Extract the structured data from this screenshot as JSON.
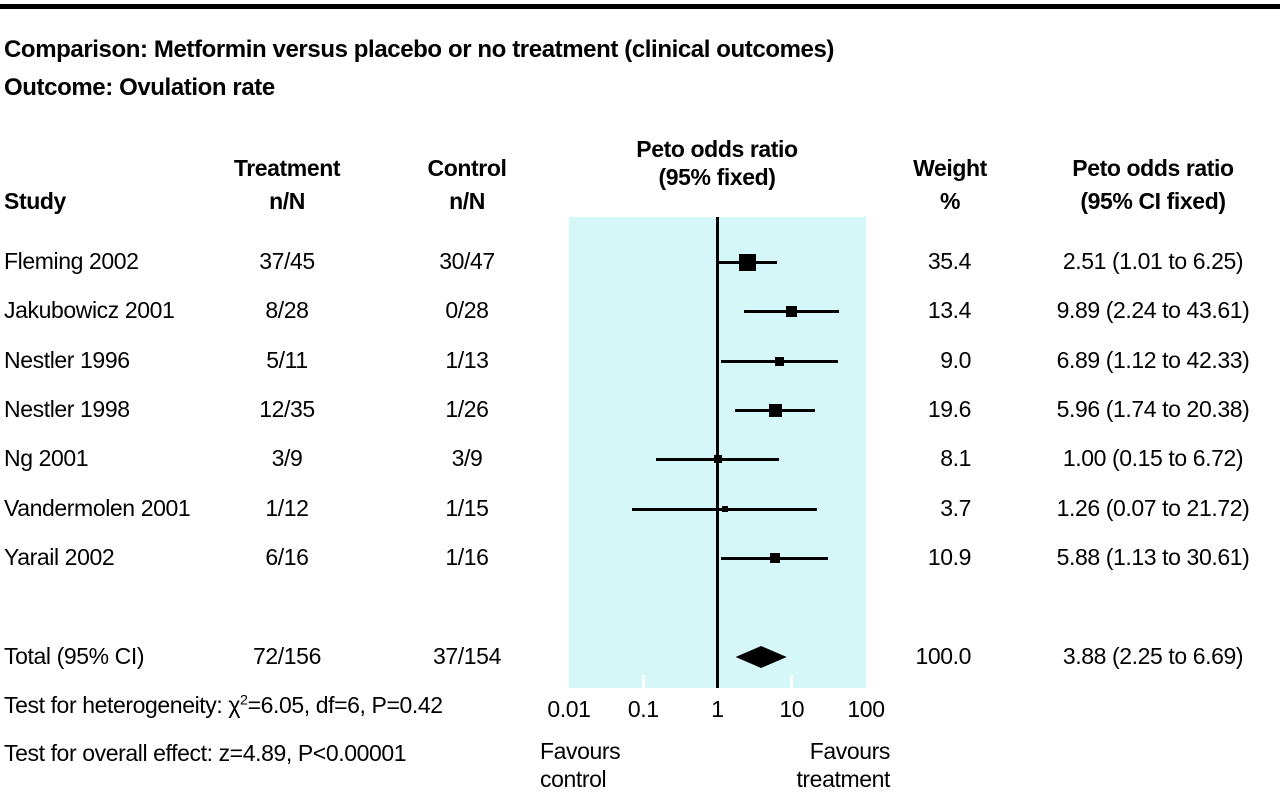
{
  "title": {
    "comparison": "Comparison: Metformin versus placebo or no treatment (clinical outcomes)",
    "outcome": "Outcome: Ovulation rate"
  },
  "columns": {
    "study": "Study",
    "treatment_l1": "Treatment",
    "treatment_l2": "n/N",
    "control_l1": "Control",
    "control_l2": "n/N",
    "plot_l1": "Peto odds ratio",
    "plot_l2": "(95% fixed)",
    "weight_l1": "Weight",
    "weight_l2": "%",
    "or_l1": "Peto odds ratio",
    "or_l2": "(95% CI fixed)"
  },
  "chart_data": {
    "type": "forest",
    "x_axis": {
      "scale": "log10",
      "range": [
        0.01,
        100
      ],
      "ticks": [
        0.01,
        0.1,
        1,
        10,
        100
      ],
      "tick_labels": [
        "0.01",
        "0.1",
        "1",
        "10",
        "100"
      ],
      "null_line": 1
    },
    "studies": [
      {
        "study": "Fleming 2002",
        "treatment": "37/45",
        "control": "30/47",
        "weight": 35.4,
        "weight_label": "35.4",
        "or": 2.51,
        "ci_low": 1.01,
        "ci_high": 6.25,
        "or_label": "2.51 (1.01 to 6.25)"
      },
      {
        "study": "Jakubowicz 2001",
        "treatment": "8/28",
        "control": "0/28",
        "weight": 13.4,
        "weight_label": "13.4",
        "or": 9.89,
        "ci_low": 2.24,
        "ci_high": 43.61,
        "or_label": "9.89 (2.24 to 43.61)"
      },
      {
        "study": "Nestler 1996",
        "treatment": "5/11",
        "control": "1/13",
        "weight": 9.0,
        "weight_label": "9.0",
        "or": 6.89,
        "ci_low": 1.12,
        "ci_high": 42.33,
        "or_label": "6.89 (1.12 to 42.33)"
      },
      {
        "study": "Nestler 1998",
        "treatment": "12/35",
        "control": "1/26",
        "weight": 19.6,
        "weight_label": "19.6",
        "or": 5.96,
        "ci_low": 1.74,
        "ci_high": 20.38,
        "or_label": "5.96 (1.74 to 20.38)"
      },
      {
        "study": "Ng 2001",
        "treatment": "3/9",
        "control": "3/9",
        "weight": 8.1,
        "weight_label": "8.1",
        "or": 1.0,
        "ci_low": 0.15,
        "ci_high": 6.72,
        "or_label": "1.00 (0.15 to 6.72)"
      },
      {
        "study": "Vandermolen 2001",
        "treatment": "1/12",
        "control": "1/15",
        "weight": 3.7,
        "weight_label": "3.7",
        "or": 1.26,
        "ci_low": 0.07,
        "ci_high": 21.72,
        "or_label": "1.26 (0.07 to 21.72)"
      },
      {
        "study": "Yarail 2002",
        "treatment": "6/16",
        "control": "1/16",
        "weight": 10.9,
        "weight_label": "10.9",
        "or": 5.88,
        "ci_low": 1.13,
        "ci_high": 30.61,
        "or_label": "5.88 (1.13 to 30.61)"
      }
    ],
    "total": {
      "study": "Total (95% CI)",
      "treatment": "72/156",
      "control": "37/154",
      "weight": 100.0,
      "weight_label": "100.0",
      "or": 3.88,
      "ci_low": 2.25,
      "ci_high": 6.69,
      "or_label": "3.88 (2.25 to 6.69)"
    },
    "footnotes": {
      "heterogeneity_prefix": "Test for heterogeneity: χ",
      "heterogeneity_sup": "2",
      "heterogeneity_suffix": "=6.05, df=6, P=0.42",
      "overall_effect": "Test for overall effect: z=4.89, P<0.00001"
    },
    "favours": {
      "left_l1": "Favours",
      "left_l2": "control",
      "right_l1": "Favours",
      "right_l2": "treatment"
    }
  },
  "colors": {
    "plot_bg": "#d5f7f8",
    "marker": "#000000",
    "top_bar": "#000000"
  }
}
